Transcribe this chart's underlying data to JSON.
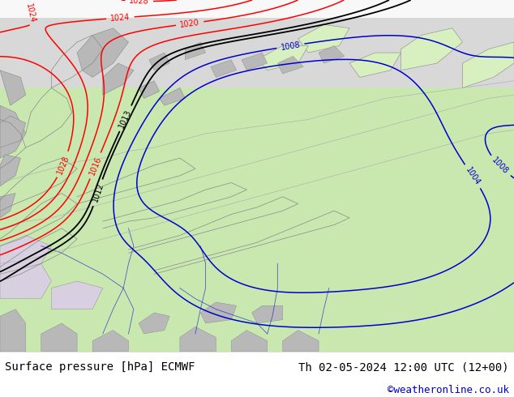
{
  "title_left": "Surface pressure [hPa] ECMWF",
  "title_right": "Th 02-05-2024 12:00 UTC (12+00)",
  "credit": "©weatheronline.co.uk",
  "title_fontsize": 10,
  "credit_fontsize": 9,
  "bg_color": "#ffffff",
  "ocean_gray": "#d8d8d8",
  "land_green": "#c8e8b0",
  "land_light_green": "#d8f0c0",
  "gray_land": "#b8b8b8",
  "coast_color": "#888888",
  "red_isobar": "#ff0000",
  "black_isobar": "#000000",
  "blue_isobar": "#0000cc",
  "text_color": "#000000",
  "credit_color": "#0000cc",
  "fig_width": 6.34,
  "fig_height": 4.9,
  "dpi": 100
}
